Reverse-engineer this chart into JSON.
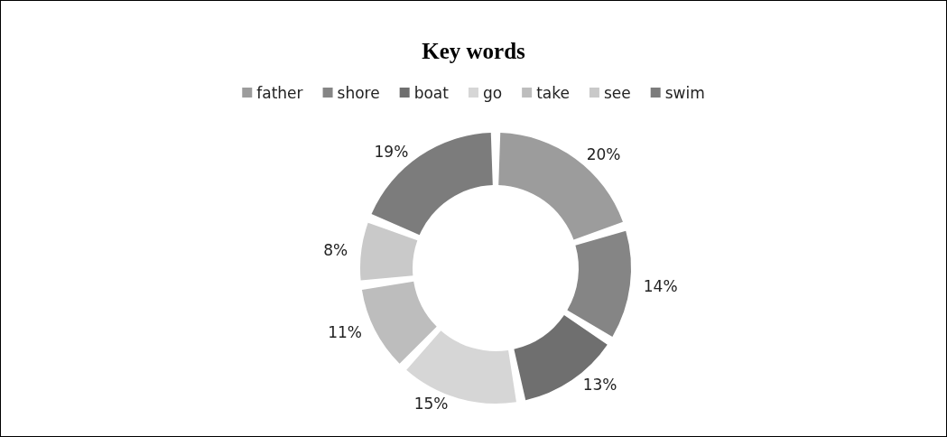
{
  "chart_data": {
    "type": "donut",
    "title": "Key words",
    "categories": [
      "father",
      "shore",
      "boat",
      "go",
      "take",
      "see",
      "swim"
    ],
    "values": [
      20,
      14,
      13,
      15,
      11,
      8,
      19
    ],
    "colors": [
      "#9c9c9c",
      "#858585",
      "#6f6f6f",
      "#d6d6d6",
      "#bdbdbd",
      "#c9c9c9",
      "#7c7c7c"
    ],
    "value_labels": [
      "20%",
      "14%",
      "13%",
      "15%",
      "11%",
      "8%",
      "19%"
    ],
    "legend": "top"
  }
}
